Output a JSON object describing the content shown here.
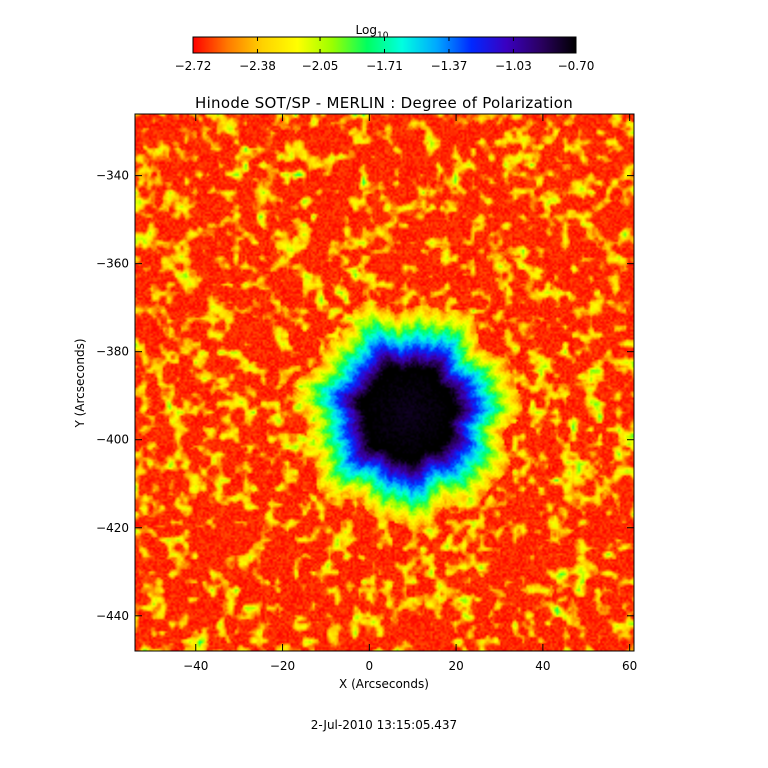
{
  "chart_data": {
    "type": "heatmap",
    "title": "Hinode SOT/SP - MERLIN : Degree of Polarization",
    "xlabel": "X (Arcseconds)",
    "ylabel": "Y (Arcseconds)",
    "xlim": [
      -54,
      61
    ],
    "ylim": [
      -448,
      -326
    ],
    "x_ticks": [
      -40,
      -20,
      0,
      20,
      40,
      60
    ],
    "y_ticks": [
      -340,
      -360,
      -380,
      -400,
      -420,
      -440
    ],
    "x_tick_labels": [
      "−40",
      "−20",
      "0",
      "20",
      "40",
      "60"
    ],
    "y_tick_labels": [
      "−340",
      "−360",
      "−380",
      "−400",
      "−420",
      "−440"
    ],
    "colorbar": {
      "label_main": "Log",
      "label_sub": "10",
      "min": -2.72,
      "max": -0.7,
      "tick_values": [
        -2.72,
        -2.38,
        -2.05,
        -1.71,
        -1.37,
        -1.03,
        -0.7
      ],
      "tick_labels": [
        "−2.72",
        "−2.38",
        "−2.05",
        "−1.71",
        "−1.37",
        "−1.03",
        "−0.70"
      ],
      "colormap": [
        "#ff0000",
        "#ff7a00",
        "#ffd200",
        "#ffff00",
        "#9aff00",
        "#00ff60",
        "#00ffe0",
        "#00a8ff",
        "#0028ff",
        "#3a00c0",
        "#2a0060",
        "#000000"
      ]
    },
    "features": {
      "sunspot_center": [
        9,
        -394
      ],
      "umbra_radius": 9,
      "penumbra_radius": 19,
      "background_level": -2.66,
      "umbra_level": -0.75
    },
    "timestamp": "2-Jul-2010 13:15:05.437"
  }
}
